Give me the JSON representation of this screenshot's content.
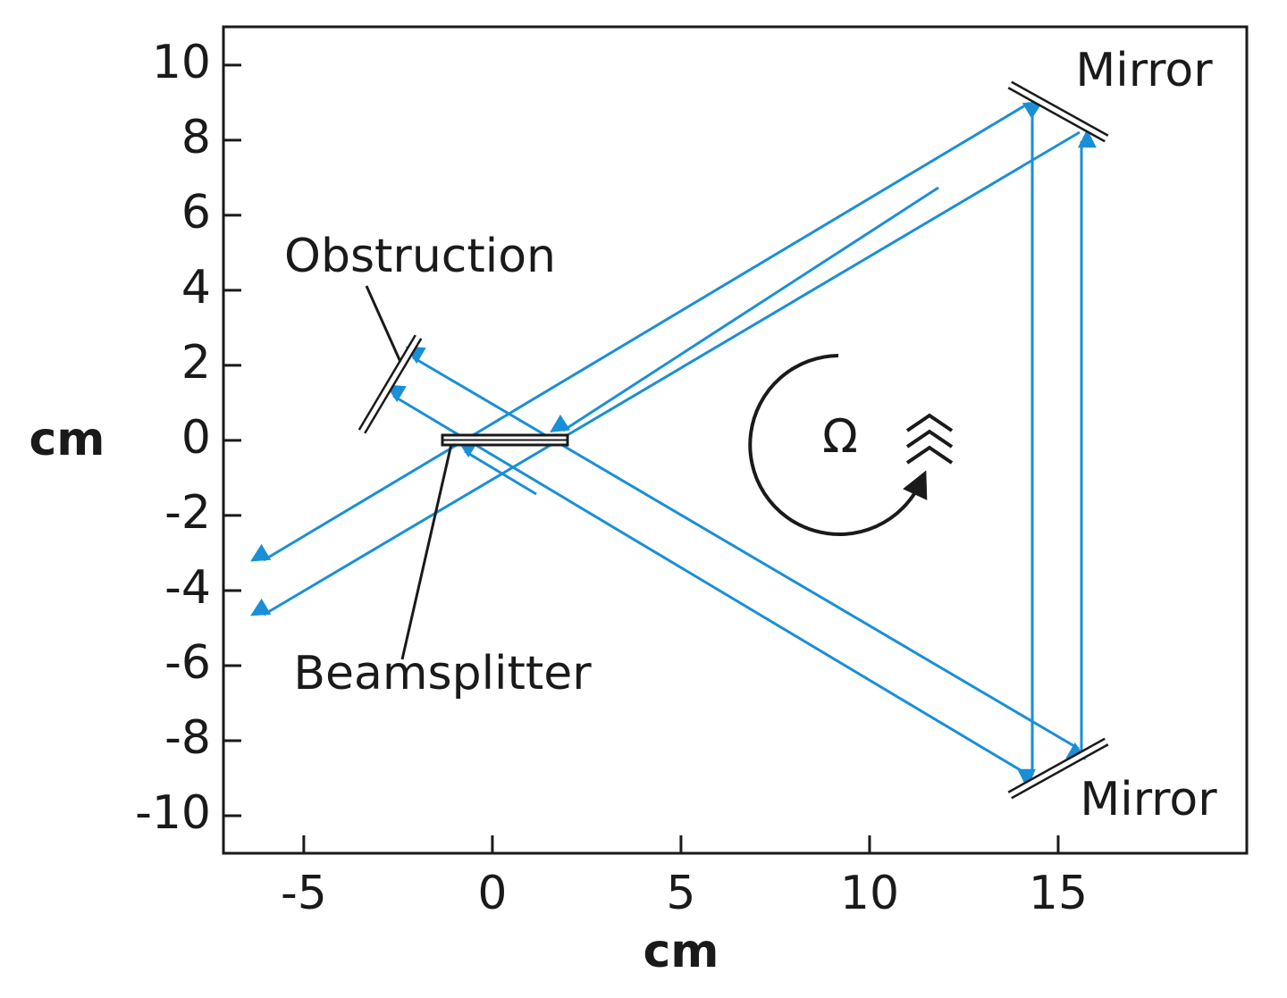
{
  "plot": {
    "xlim": [
      -7.13,
      20
    ],
    "ylim": [
      -11,
      11.02
    ],
    "xticks": [
      -5,
      0,
      5,
      10,
      15
    ],
    "yticks": [
      10,
      8,
      6,
      4,
      2,
      0,
      -2,
      -4,
      -6,
      -8,
      -10
    ],
    "xlabel": "cm",
    "ylabel": "cm"
  },
  "labels": {
    "mirror_top": "Mirror",
    "mirror_bottom": "Mirror",
    "obstruction": "Obstruction",
    "beamsplitter": "Beamsplitter",
    "rotation": "Ω"
  }
}
